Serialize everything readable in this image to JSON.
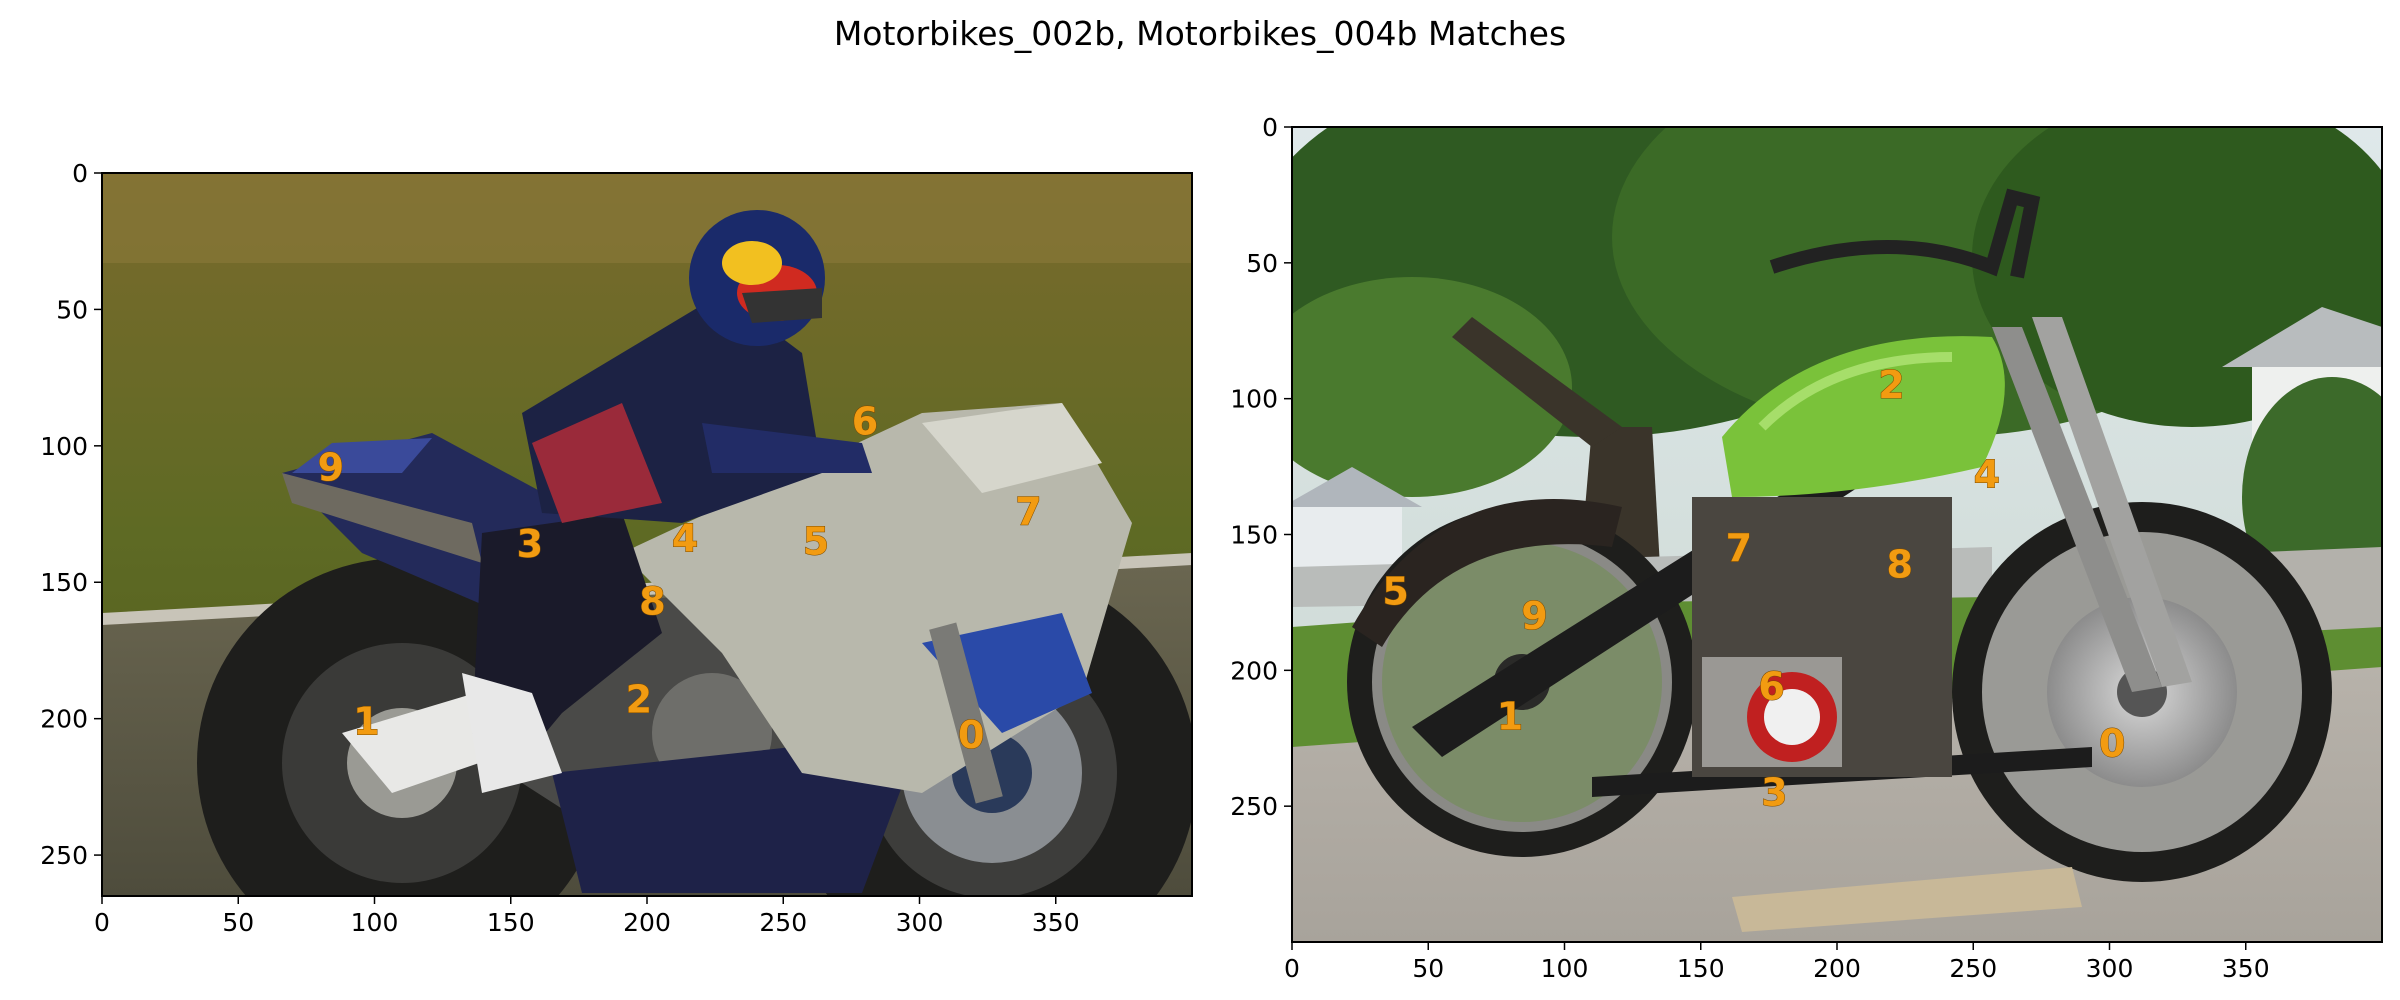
{
  "title": "Motorbikes_002b, Motorbikes_004b Matches",
  "colors": {
    "keypoint_label": "#f29b11",
    "axes": "#000000",
    "background": "#ffffff"
  },
  "chart_data": [
    {
      "type": "scatter",
      "panel": "left",
      "image": "Motorbikes_002b",
      "xlim": [
        0,
        400
      ],
      "ylim": [
        265,
        0
      ],
      "xticks": [
        0,
        50,
        100,
        150,
        200,
        250,
        300,
        350
      ],
      "yticks": [
        0,
        50,
        100,
        150,
        200,
        250
      ],
      "points": [
        {
          "label": "0",
          "x": 319,
          "y": 206
        },
        {
          "label": "1",
          "x": 97,
          "y": 201
        },
        {
          "label": "2",
          "x": 197,
          "y": 193
        },
        {
          "label": "3",
          "x": 157,
          "y": 136
        },
        {
          "label": "4",
          "x": 214,
          "y": 134
        },
        {
          "label": "5",
          "x": 262,
          "y": 135
        },
        {
          "label": "6",
          "x": 280,
          "y": 91
        },
        {
          "label": "7",
          "x": 340,
          "y": 124
        },
        {
          "label": "8",
          "x": 202,
          "y": 157
        },
        {
          "label": "9",
          "x": 84,
          "y": 108
        }
      ]
    },
    {
      "type": "scatter",
      "panel": "right",
      "image": "Motorbikes_004b",
      "xlim": [
        0,
        400
      ],
      "ylim": [
        300,
        0
      ],
      "xticks": [
        0,
        50,
        100,
        150,
        200,
        250,
        300,
        350
      ],
      "yticks": [
        0,
        50,
        100,
        150,
        200,
        250
      ],
      "points": [
        {
          "label": "0",
          "x": 301,
          "y": 227
        },
        {
          "label": "1",
          "x": 80,
          "y": 217
        },
        {
          "label": "2",
          "x": 220,
          "y": 95
        },
        {
          "label": "3",
          "x": 177,
          "y": 245
        },
        {
          "label": "4",
          "x": 255,
          "y": 128
        },
        {
          "label": "5",
          "x": 38,
          "y": 171
        },
        {
          "label": "6",
          "x": 176,
          "y": 206
        },
        {
          "label": "7",
          "x": 164,
          "y": 155
        },
        {
          "label": "8",
          "x": 223,
          "y": 161
        },
        {
          "label": "9",
          "x": 89,
          "y": 180
        }
      ]
    }
  ]
}
